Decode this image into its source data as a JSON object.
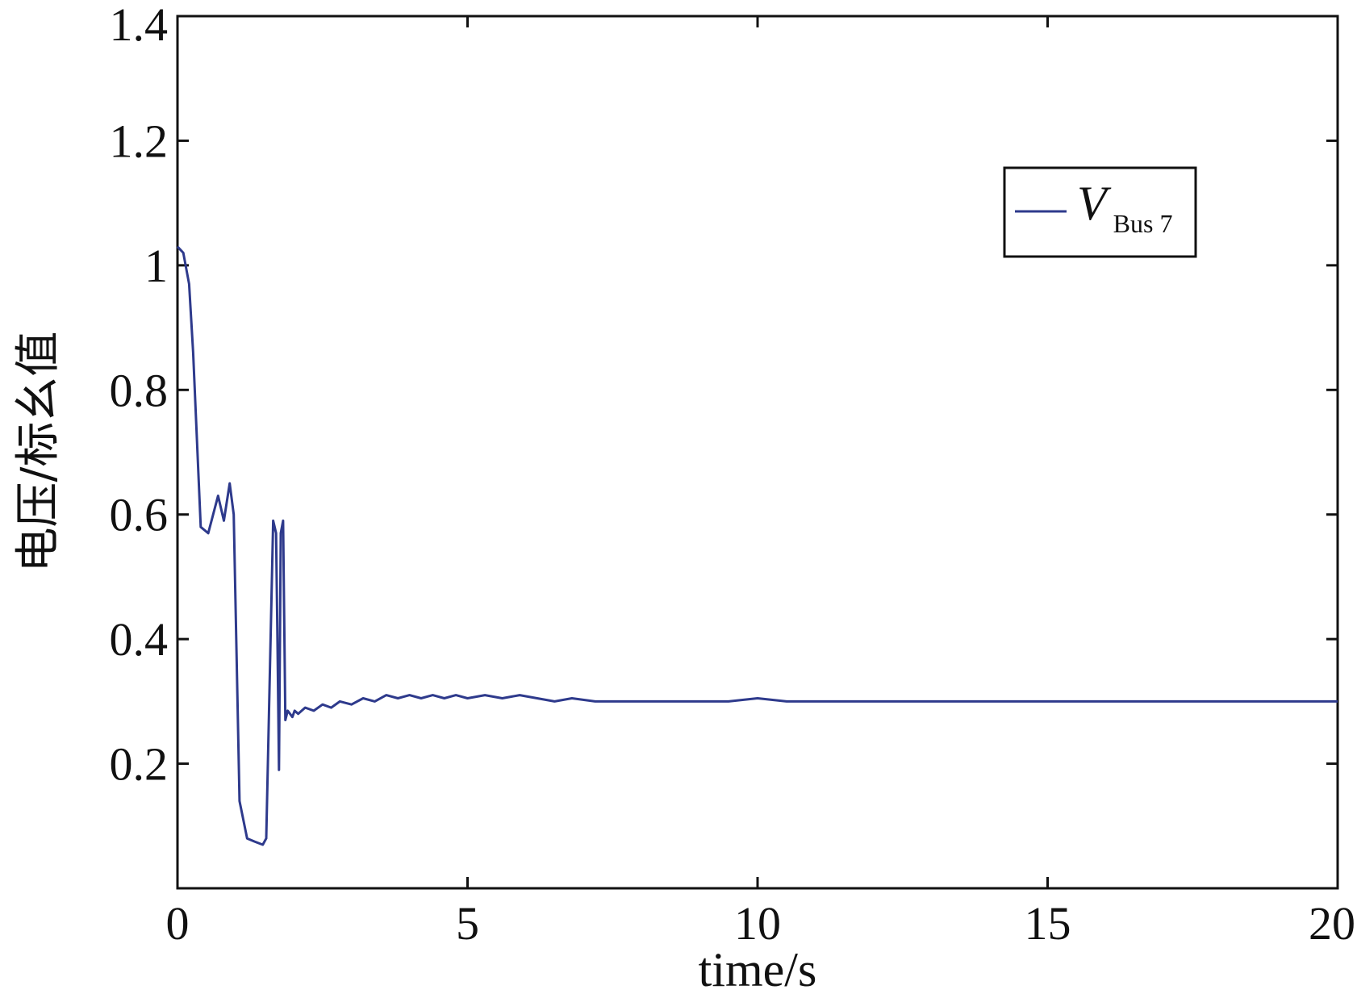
{
  "chart_data": {
    "type": "line",
    "xlabel": "time/s",
    "ylabel": "电压/标幺值",
    "xlim": [
      0,
      20
    ],
    "ylim": [
      0,
      1.4
    ],
    "xticks": [
      0,
      5,
      10,
      15,
      20
    ],
    "xtick_labels": [
      "0",
      "5",
      "10",
      "15",
      "20"
    ],
    "yticks": [
      0.2,
      0.4,
      0.6,
      0.8,
      1.0,
      1.2,
      1.4
    ],
    "ytick_labels": [
      "0.2",
      "0.4",
      "0.6",
      "0.8",
      "1",
      "1.2",
      "1.4"
    ],
    "grid": false,
    "legend": {
      "placement": "top-right",
      "symbol": "V",
      "subscript": "Bus 7"
    },
    "series": [
      {
        "name": "V Bus 7",
        "color": "#2e3a8c",
        "x": [
          0,
          0.1,
          0.2,
          0.27,
          0.4,
          0.53,
          0.7,
          0.8,
          0.9,
          0.97,
          1.07,
          1.2,
          1.33,
          1.47,
          1.53,
          1.65,
          1.7,
          1.72,
          1.75,
          1.78,
          1.82,
          1.86,
          1.9,
          1.98,
          2.02,
          2.08,
          2.2,
          2.35,
          2.5,
          2.65,
          2.8,
          3.0,
          3.2,
          3.4,
          3.6,
          3.8,
          4.0,
          4.2,
          4.4,
          4.6,
          4.8,
          5.0,
          5.3,
          5.6,
          5.9,
          6.2,
          6.5,
          6.8,
          7.2,
          7.6,
          8.0,
          8.5,
          9.0,
          9.5,
          10.0,
          10.5,
          11.0,
          11.5,
          12.0,
          12.5,
          13.0,
          13.5,
          14.0,
          14.5,
          15.0,
          15.5,
          16.0,
          16.5,
          17.0,
          17.5,
          18.0,
          18.5,
          19.0,
          19.5,
          20.0
        ],
        "y": [
          1.03,
          1.02,
          0.97,
          0.86,
          0.58,
          0.57,
          0.63,
          0.59,
          0.65,
          0.6,
          0.14,
          0.08,
          0.075,
          0.07,
          0.08,
          0.59,
          0.57,
          0.42,
          0.19,
          0.57,
          0.59,
          0.27,
          0.285,
          0.275,
          0.285,
          0.28,
          0.29,
          0.285,
          0.295,
          0.29,
          0.3,
          0.295,
          0.305,
          0.3,
          0.31,
          0.305,
          0.31,
          0.305,
          0.31,
          0.305,
          0.31,
          0.305,
          0.31,
          0.305,
          0.31,
          0.305,
          0.3,
          0.305,
          0.3,
          0.3,
          0.3,
          0.3,
          0.3,
          0.3,
          0.305,
          0.3,
          0.3,
          0.3,
          0.3,
          0.3,
          0.3,
          0.3,
          0.3,
          0.3,
          0.3,
          0.3,
          0.3,
          0.3,
          0.3,
          0.3,
          0.3,
          0.3,
          0.3,
          0.3,
          0.3
        ]
      }
    ]
  }
}
